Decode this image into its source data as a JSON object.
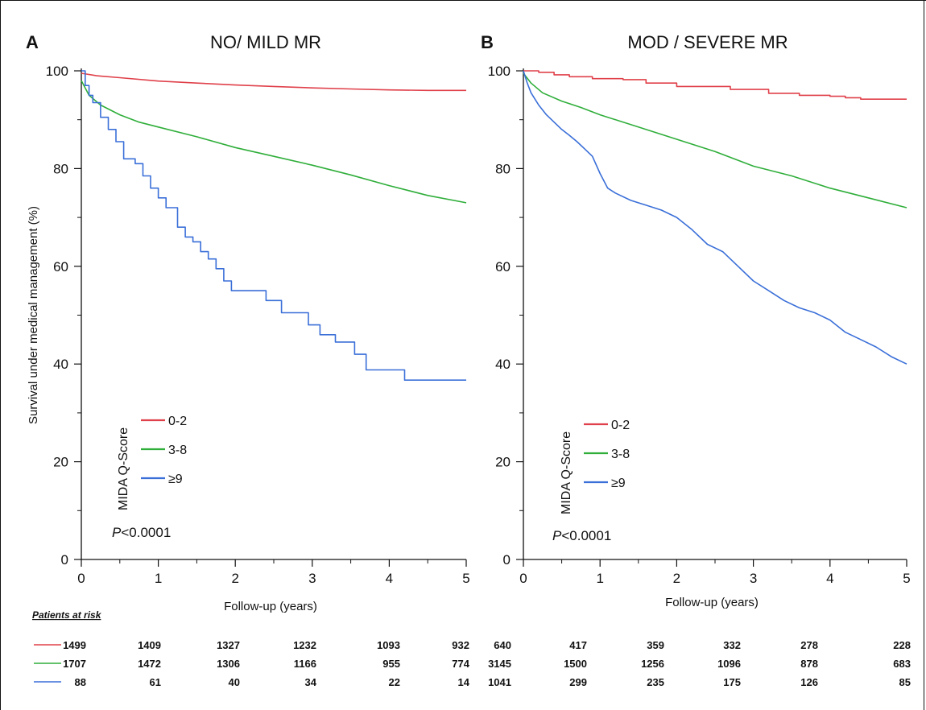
{
  "colors": {
    "s0": "#e0404a",
    "s1": "#2fae3a",
    "s2": "#3a6fd8",
    "axis": "#111111"
  },
  "risk_table": {
    "heading": "Patients at risk",
    "rows": [
      {
        "color": "#e0404a",
        "values": [
          "1499",
          "1409",
          "1327",
          "1232",
          "1093",
          "932",
          "640",
          "417",
          "359",
          "332",
          "278",
          "228"
        ]
      },
      {
        "color": "#2fae3a",
        "values": [
          "1707",
          "1472",
          "1306",
          "1166",
          "955",
          "774",
          "3145",
          "1500",
          "1256",
          "1096",
          "878",
          "683"
        ]
      },
      {
        "color": "#3a6fd8",
        "values": [
          "88",
          "61",
          "40",
          "34",
          "22",
          "14",
          "1041",
          "299",
          "235",
          "175",
          "126",
          "85"
        ]
      }
    ]
  },
  "chart_data": [
    {
      "type": "line",
      "panel_label": "A",
      "title": "NO/ MILD MR",
      "xlabel": "Follow-up (years)",
      "ylabel": "Survival under medical management (%)",
      "xlim": [
        0,
        5
      ],
      "ylim": [
        0,
        100
      ],
      "xticks": [
        0,
        1,
        2,
        3,
        4,
        5
      ],
      "yticks": [
        0,
        20,
        40,
        60,
        80,
        100
      ],
      "legend": {
        "title": "MIDA Q-Score",
        "placement": "bottom-left"
      },
      "annotation": {
        "italic": "P",
        "text": "<0.0001"
      },
      "series": [
        {
          "name": "0-2",
          "color": "#e0404a",
          "step": false,
          "x": [
            0,
            0.2,
            0.5,
            1,
            1.5,
            2,
            2.5,
            3,
            3.5,
            4,
            4.5,
            5
          ],
          "y": [
            99.5,
            99,
            98.6,
            97.9,
            97.5,
            97.1,
            96.8,
            96.5,
            96.3,
            96.1,
            96,
            96
          ]
        },
        {
          "name": "3-8",
          "color": "#2fae3a",
          "step": false,
          "x": [
            0,
            0.1,
            0.25,
            0.5,
            0.75,
            1,
            1.5,
            2,
            2.5,
            3,
            3.5,
            4,
            4.5,
            5
          ],
          "y": [
            98,
            95,
            93,
            91,
            89.5,
            88.5,
            86.5,
            84.3,
            82.5,
            80.7,
            78.7,
            76.5,
            74.5,
            73
          ]
        },
        {
          "name": "≥9",
          "color": "#3a6fd8",
          "step": true,
          "x": [
            0,
            0.05,
            0.1,
            0.15,
            0.25,
            0.35,
            0.45,
            0.55,
            0.7,
            0.8,
            0.9,
            1,
            1.1,
            1.25,
            1.35,
            1.45,
            1.55,
            1.65,
            1.75,
            1.85,
            1.95,
            2.1,
            2.4,
            2.6,
            2.85,
            2.95,
            3.1,
            3.3,
            3.55,
            3.7,
            4.2,
            5
          ],
          "y": [
            100,
            97,
            95,
            93.5,
            90.5,
            88,
            85.5,
            82,
            81,
            78.5,
            76,
            74,
            72,
            68,
            66,
            65,
            63,
            61.5,
            59.5,
            57,
            55,
            55,
            53,
            50.5,
            50.5,
            48,
            46,
            44.5,
            42,
            38.8,
            36.7,
            36.7
          ]
        }
      ]
    },
    {
      "type": "line",
      "panel_label": "B",
      "title": "MOD / SEVERE MR",
      "xlabel": "Follow-up (years)",
      "ylabel": "",
      "xlim": [
        0,
        5
      ],
      "ylim": [
        0,
        100
      ],
      "xticks": [
        0,
        1,
        2,
        3,
        4,
        5
      ],
      "yticks": [
        0,
        20,
        40,
        60,
        80,
        100
      ],
      "legend": {
        "title": "MIDA Q-Score",
        "placement": "bottom-left"
      },
      "annotation": {
        "italic": "P",
        "text": "<0.0001"
      },
      "series": [
        {
          "name": "0-2",
          "color": "#e0404a",
          "step": true,
          "x": [
            0,
            0.2,
            0.4,
            0.6,
            0.9,
            1.3,
            1.6,
            2,
            2.7,
            3.2,
            3.6,
            4,
            4.2,
            4.4,
            5
          ],
          "y": [
            100,
            99.7,
            99.2,
            98.8,
            98.4,
            98.2,
            97.5,
            96.8,
            96.2,
            95.4,
            95,
            94.8,
            94.5,
            94.2,
            94.2
          ]
        },
        {
          "name": "3-8",
          "color": "#2fae3a",
          "step": false,
          "x": [
            0,
            0.1,
            0.25,
            0.5,
            0.75,
            1,
            1.5,
            2,
            2.5,
            3,
            3.5,
            4,
            4.5,
            5
          ],
          "y": [
            99.5,
            97.5,
            95.5,
            93.8,
            92.5,
            91,
            88.5,
            86,
            83.5,
            80.5,
            78.5,
            76,
            74,
            72
          ]
        },
        {
          "name": "≥9",
          "color": "#3a6fd8",
          "step": false,
          "x": [
            0,
            0.05,
            0.1,
            0.2,
            0.3,
            0.4,
            0.5,
            0.6,
            0.7,
            0.8,
            0.9,
            1,
            1.1,
            1.2,
            1.4,
            1.6,
            1.8,
            2,
            2.2,
            2.4,
            2.6,
            2.8,
            3,
            3.2,
            3.4,
            3.6,
            3.8,
            4,
            4.2,
            4.4,
            4.6,
            4.8,
            5
          ],
          "y": [
            100,
            97.5,
            95.5,
            93,
            91,
            89.5,
            88,
            86.8,
            85.5,
            84,
            82.5,
            79,
            76,
            75,
            73.5,
            72.5,
            71.5,
            70,
            67.5,
            64.5,
            63,
            60,
            57,
            55,
            53,
            51.5,
            50.5,
            49,
            46.5,
            45,
            43.5,
            41.5,
            40
          ]
        }
      ]
    }
  ]
}
